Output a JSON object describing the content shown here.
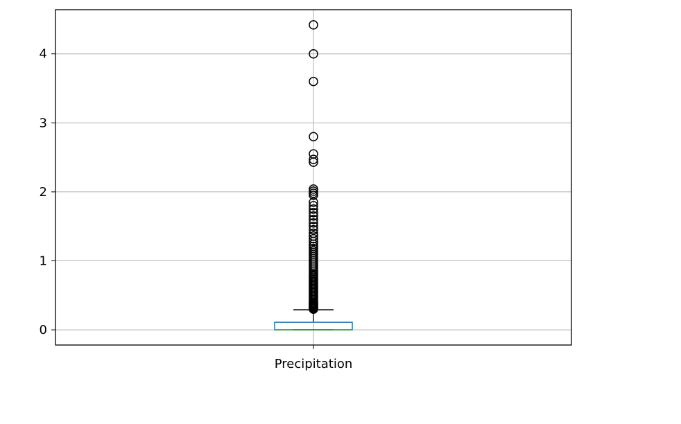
{
  "chart_data": {
    "type": "box",
    "categories": [
      "Precipitation"
    ],
    "title": "",
    "xlabel": "",
    "ylabel": "",
    "ylim": [
      -0.22,
      4.64
    ],
    "yticks": [
      0,
      1,
      2,
      3,
      4
    ],
    "grid": true,
    "box": {
      "min": 0.0,
      "q1": 0.0,
      "median": 0.0,
      "q3": 0.11,
      "whisker_high": 0.29,
      "whisker_low": 0.0
    },
    "outliers": [
      0.3,
      0.31,
      0.32,
      0.33,
      0.34,
      0.35,
      0.36,
      0.37,
      0.38,
      0.39,
      0.4,
      0.42,
      0.44,
      0.46,
      0.48,
      0.5,
      0.52,
      0.54,
      0.56,
      0.58,
      0.6,
      0.62,
      0.64,
      0.66,
      0.68,
      0.7,
      0.72,
      0.74,
      0.76,
      0.78,
      0.8,
      0.82,
      0.85,
      0.88,
      0.91,
      0.94,
      0.97,
      1.0,
      1.03,
      1.06,
      1.09,
      1.12,
      1.15,
      1.18,
      1.21,
      1.24,
      1.28,
      1.32,
      1.36,
      1.4,
      1.45,
      1.5,
      1.55,
      1.6,
      1.65,
      1.7,
      1.75,
      1.8,
      1.85,
      1.95,
      1.98,
      2.01,
      2.04,
      2.43,
      2.47,
      2.55,
      2.8,
      3.6,
      4.0,
      4.42
    ],
    "colors": {
      "box": "#1f77b4",
      "median": "#2ca02c",
      "whisker": "#000000",
      "grid": "#b0b0b0",
      "axes": "#000000"
    }
  }
}
